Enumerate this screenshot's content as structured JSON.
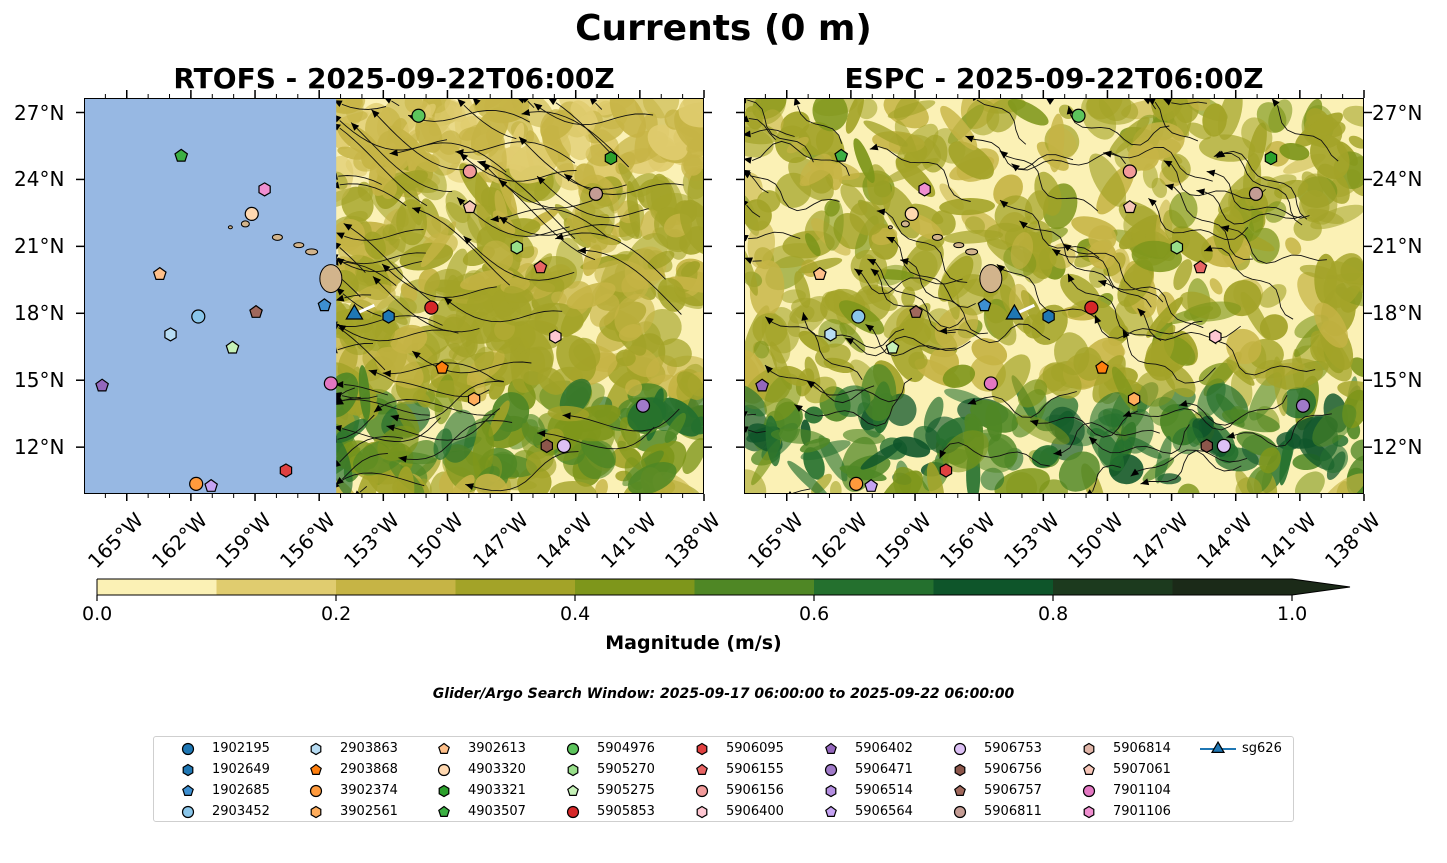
{
  "title": "Currents (0 m)",
  "panels": [
    {
      "title": "RTOFS - 2025-09-22T06:00Z"
    },
    {
      "title": "ESPC - 2025-09-22T06:00Z"
    }
  ],
  "lat_labels": [
    "27°N",
    "24°N",
    "21°N",
    "18°N",
    "15°N",
    "12°N"
  ],
  "lon_labels": [
    "165°W",
    "162°W",
    "159°W",
    "156°W",
    "153°W",
    "150°W",
    "147°W",
    "144°W",
    "141°W",
    "138°W"
  ],
  "colorbar": {
    "label": "Magnitude (m/s)",
    "ticks": [
      "0.0",
      "0.2",
      "0.4",
      "0.6",
      "0.8",
      "1.0"
    ],
    "colors": [
      "#fbf1b5",
      "#e0cc6f",
      "#c6b445",
      "#a3a328",
      "#7e961b",
      "#4f8725",
      "#24702e",
      "#0e552a",
      "#1c3a1e",
      "#1b2a18"
    ]
  },
  "search_window": "Glider/Argo Search Window: 2025-09-17 06:00:00 to 2025-09-22 06:00:00",
  "colors": {
    "land": "#d2b48c",
    "rtofs_nodata": "#97b8e3"
  },
  "legend": [
    {
      "label": "1902195",
      "marker": "circle",
      "color": "#1f77b4"
    },
    {
      "label": "1902649",
      "marker": "hexagon",
      "color": "#1f77b4"
    },
    {
      "label": "1902685",
      "marker": "pentagon",
      "color": "#3d8fd1"
    },
    {
      "label": "2903452",
      "marker": "circle",
      "color": "#8ac6ea"
    },
    {
      "label": "2903863",
      "marker": "hexagon",
      "color": "#b7dcf3"
    },
    {
      "label": "2903868",
      "marker": "pentagon",
      "color": "#ff7f0e"
    },
    {
      "label": "3902374",
      "marker": "circle",
      "color": "#ff9a3c"
    },
    {
      "label": "3902561",
      "marker": "hexagon",
      "color": "#ffad5c"
    },
    {
      "label": "3902613",
      "marker": "pentagon",
      "color": "#ffc08a"
    },
    {
      "label": "4903320",
      "marker": "circle",
      "color": "#ffd8b0"
    },
    {
      "label": "4903321",
      "marker": "hexagon",
      "color": "#2ca02c"
    },
    {
      "label": "4903507",
      "marker": "pentagon",
      "color": "#3cb043"
    },
    {
      "label": "5904976",
      "marker": "circle",
      "color": "#5cc45c"
    },
    {
      "label": "5905270",
      "marker": "hexagon",
      "color": "#98df8a"
    },
    {
      "label": "5905275",
      "marker": "pentagon",
      "color": "#c6f2b8"
    },
    {
      "label": "5905853",
      "marker": "circle",
      "color": "#d62728"
    },
    {
      "label": "5906095",
      "marker": "hexagon",
      "color": "#e04040"
    },
    {
      "label": "5906155",
      "marker": "pentagon",
      "color": "#e86464"
    },
    {
      "label": "5906156",
      "marker": "circle",
      "color": "#f29a9a"
    },
    {
      "label": "5906400",
      "marker": "hexagon",
      "color": "#ffc7d2"
    },
    {
      "label": "5906402",
      "marker": "pentagon",
      "color": "#9467bd"
    },
    {
      "label": "5906471",
      "marker": "circle",
      "color": "#a07ac8"
    },
    {
      "label": "5906514",
      "marker": "hexagon",
      "color": "#b48ee0"
    },
    {
      "label": "5906564",
      "marker": "pentagon",
      "color": "#c5a3f2"
    },
    {
      "label": "5906753",
      "marker": "circle",
      "color": "#dcc0f5"
    },
    {
      "label": "5906756",
      "marker": "hexagon",
      "color": "#8c564b"
    },
    {
      "label": "5906757",
      "marker": "pentagon",
      "color": "#a0685c"
    },
    {
      "label": "5906811",
      "marker": "circle",
      "color": "#c49c94"
    },
    {
      "label": "5906814",
      "marker": "hexagon",
      "color": "#e0b5a8"
    },
    {
      "label": "5907061",
      "marker": "pentagon",
      "color": "#f7c6b8"
    },
    {
      "label": "7901104",
      "marker": "circle",
      "color": "#e377c2"
    },
    {
      "label": "7901106",
      "marker": "hexagon",
      "color": "#f08fd0"
    },
    {
      "label": "sg626",
      "marker": "triangle",
      "color": "#1f77b4"
    }
  ]
}
